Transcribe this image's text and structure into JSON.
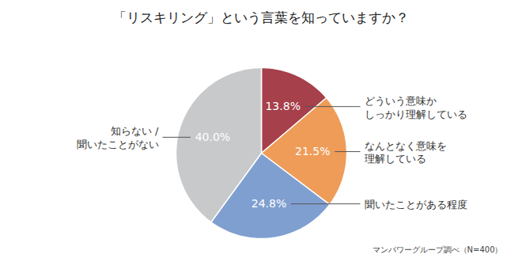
{
  "chart_data": {
    "type": "pie",
    "title": "「リスキリング」という言葉を知っていますか？",
    "categories": [
      "どういう意味か\nしっかり理解している",
      "なんとなく意味を\n理解している",
      "聞いたことがある程度",
      "知らない /\n聞いたことがない"
    ],
    "values": [
      13.8,
      21.5,
      24.8,
      40.0
    ],
    "value_labels": [
      "13.8%",
      "21.5%",
      "24.8%",
      "40.0%"
    ],
    "colors": [
      "#a6404b",
      "#ee9c58",
      "#7f9fd0",
      "#c8c9cb"
    ],
    "data_labels": true,
    "caption": "マンパワーグループ調べ（N=400）"
  }
}
